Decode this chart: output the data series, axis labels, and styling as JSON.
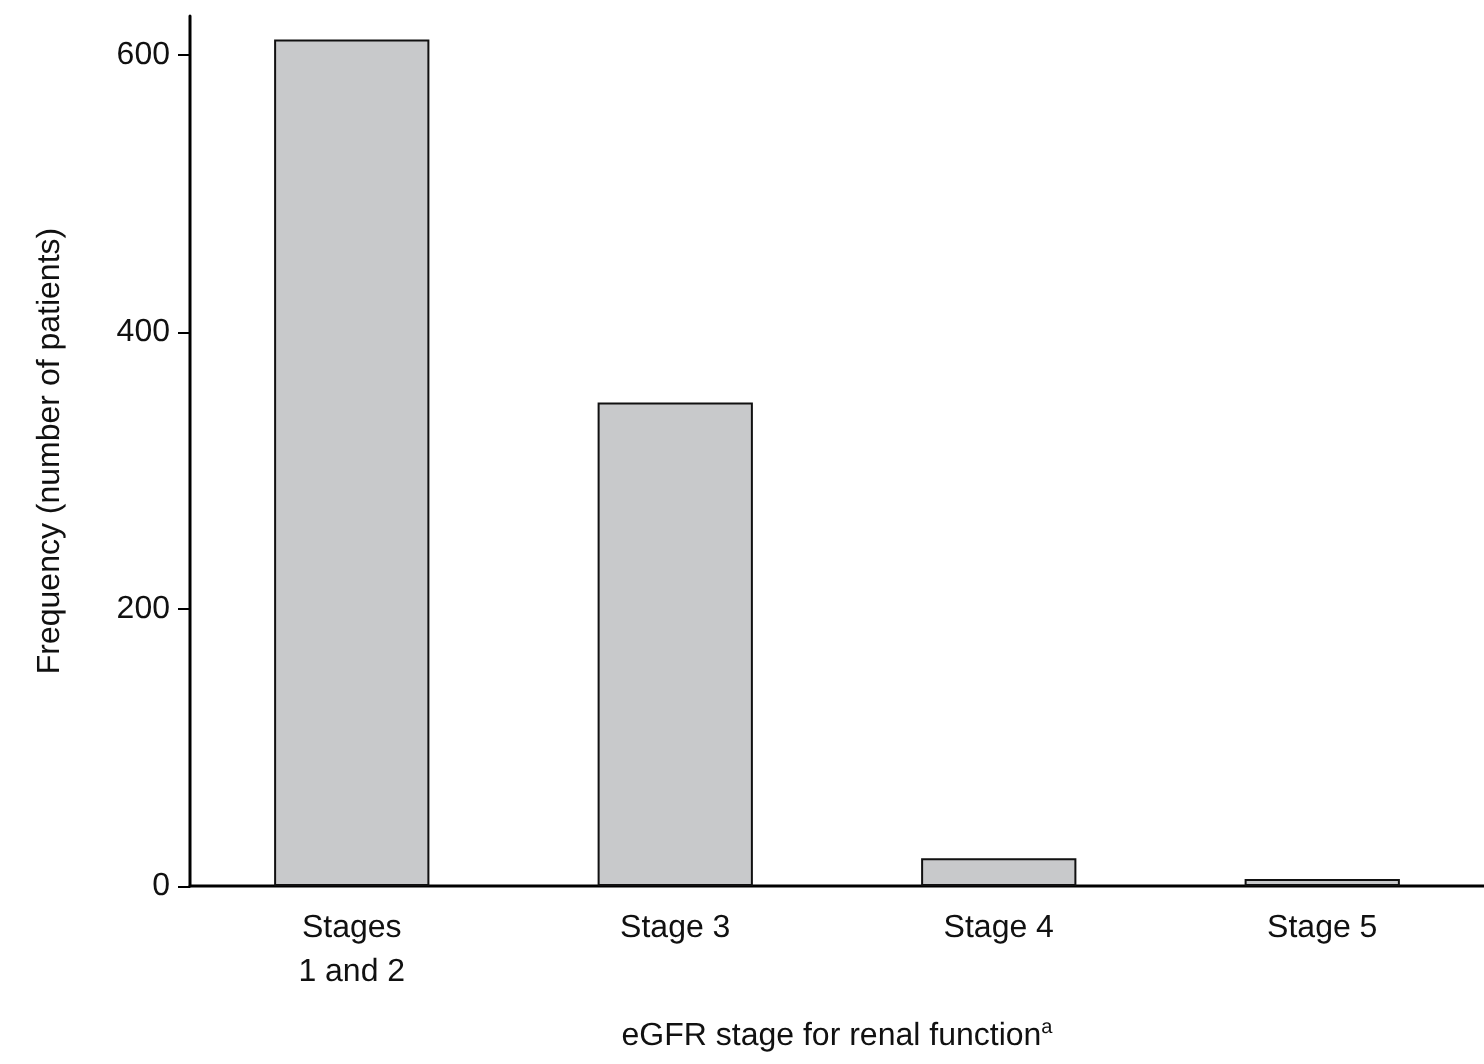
{
  "chart_data": {
    "type": "bar",
    "xlabel": "eGFR stage for renal function$^{a}$",
    "ylabel": "Frequency (number of patients)",
    "categories": [
      "Stages\n1 and 2",
      "Stage 3",
      "Stage 4",
      "Stage 5"
    ],
    "values": [
      611,
      349,
      20,
      5
    ],
    "color": "#c8c9cb",
    "ylim": [
      0,
      628
    ],
    "yticks": [
      0,
      200,
      400,
      600
    ],
    "grid": false
  }
}
